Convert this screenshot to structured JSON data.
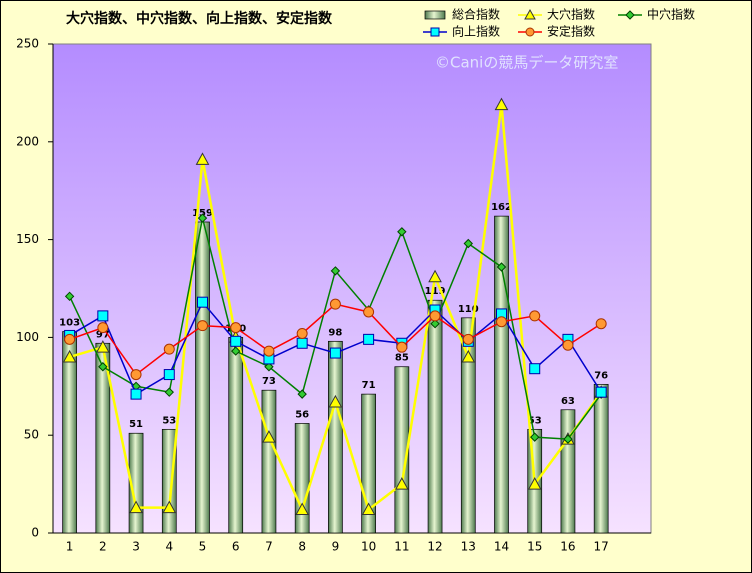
{
  "chart_data": {
    "type": "bar",
    "title": "大穴指数、中穴指数、向上指数、安定指数",
    "watermark": "©Caniの競馬データ研究室",
    "categories": [
      "1",
      "2",
      "3",
      "4",
      "5",
      "6",
      "7",
      "8",
      "9",
      "10",
      "11",
      "12",
      "13",
      "14",
      "15",
      "16",
      "17",
      null
    ],
    "ylim": [
      0,
      250
    ],
    "yticks": [
      0,
      50,
      100,
      150,
      200,
      250
    ],
    "series": [
      {
        "name": "総合指数",
        "type": "bar",
        "color": "#8fbc8f",
        "values": [
          103,
          97,
          51,
          53,
          159,
          100,
          73,
          56,
          98,
          71,
          85,
          119,
          110,
          162,
          53,
          63,
          76,
          null
        ]
      },
      {
        "name": "大穴指数",
        "type": "line",
        "marker": "triangle",
        "color": "#ffff00",
        "values": [
          90,
          95,
          13,
          13,
          191,
          100,
          49,
          12,
          67,
          12,
          25,
          131,
          90,
          219,
          25,
          48,
          72,
          null
        ]
      },
      {
        "name": "中穴指数",
        "type": "line",
        "marker": "diamond",
        "color": "#008000",
        "values": [
          121,
          85,
          75,
          72,
          161,
          93,
          85,
          71,
          134,
          114,
          154,
          107,
          148,
          136,
          49,
          48,
          71,
          null
        ]
      },
      {
        "name": "向上指数",
        "type": "line",
        "marker": "square",
        "color": "#0000cc",
        "values": [
          101,
          111,
          71,
          81,
          118,
          98,
          89,
          97,
          92,
          99,
          97,
          114,
          98,
          112,
          84,
          99,
          72,
          null
        ]
      },
      {
        "name": "安定指数",
        "type": "line",
        "marker": "circle",
        "color": "#ff0000",
        "values": [
          99,
          105,
          81,
          94,
          106,
          105,
          93,
          102,
          117,
          113,
          95,
          111,
          99,
          108,
          111,
          96,
          107,
          null
        ]
      }
    ]
  }
}
